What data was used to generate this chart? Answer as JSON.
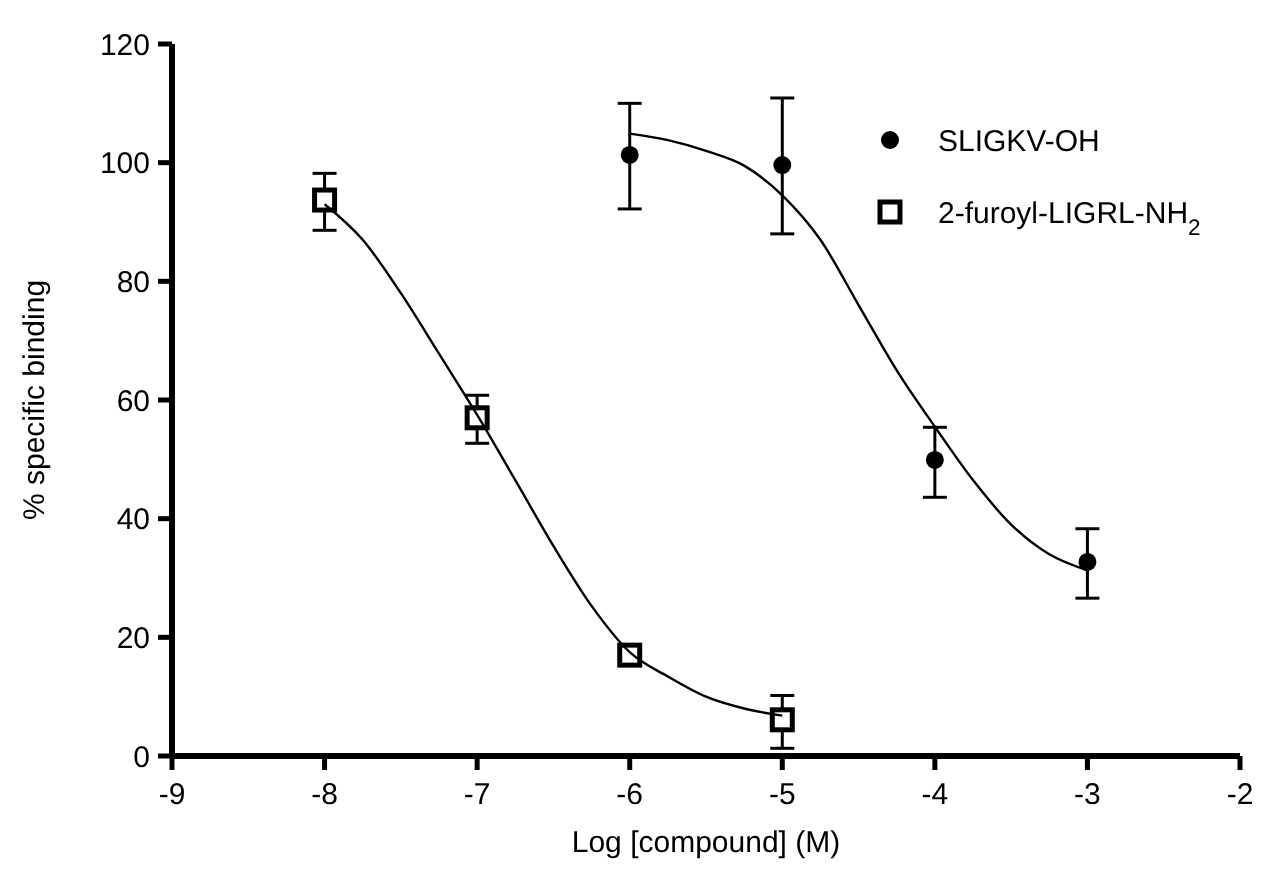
{
  "chart_data": {
    "type": "scatter",
    "xlabel": "Log [compound] (M)",
    "ylabel": "% specific binding",
    "xlim": [
      -9,
      -2
    ],
    "xticks": [
      -9,
      -8,
      -7,
      -6,
      -5,
      -4,
      -3,
      -2
    ],
    "ylim": [
      0,
      120
    ],
    "yticks": [
      0,
      20,
      40,
      60,
      80,
      100,
      120
    ],
    "grid": false,
    "legend": "top right",
    "series": [
      {
        "name": "SLIGKV-OH",
        "color": "#000000",
        "marker": "circle",
        "x": [
          -6,
          -5,
          -4,
          -3
        ],
        "values": [
          101.3,
          99.6,
          49.9,
          32.7
        ],
        "errors": [
          [
            92.2,
            110
          ],
          [
            88,
            110.9
          ],
          [
            43.6,
            55.4
          ],
          [
            26.6,
            38.3
          ]
        ]
      },
      {
        "name": "2-furoyl-LIGRL-NH$_{2}$",
        "color": "#000000",
        "marker": "square",
        "x": [
          -8,
          -7,
          -6,
          -5
        ],
        "values": [
          93.7,
          57,
          17,
          6.1
        ],
        "errors": [
          [
            88.6,
            98.2
          ],
          [
            52.7,
            60.8
          ],
          null,
          [
            1.3,
            10.2
          ]
        ]
      },
      {
        "type": "line",
        "color": "#000000",
        "marker": "none",
        "x": [
          -6,
          -5.75,
          -5.5,
          -5.25,
          -5,
          -4.75,
          -4.5,
          -4.25,
          -4,
          -3.75,
          -3.5,
          -3.25,
          -3
        ],
        "values": [
          104.9,
          103.8,
          102,
          99.5,
          94.5,
          87,
          76,
          65,
          55.5,
          46.5,
          39,
          34,
          31.3
        ]
      },
      {
        "type": "line",
        "color": "#000000",
        "marker": "none",
        "x": [
          -8,
          -7.75,
          -7.5,
          -7.25,
          -7,
          -6.75,
          -6.5,
          -6.25,
          -6,
          -5.75,
          -5.5,
          -5.25,
          -5
        ],
        "values": [
          93,
          87,
          78,
          67.8,
          57.5,
          46.5,
          35.4,
          25.3,
          17.5,
          13.4,
          10,
          8,
          6.8
        ]
      }
    ]
  }
}
